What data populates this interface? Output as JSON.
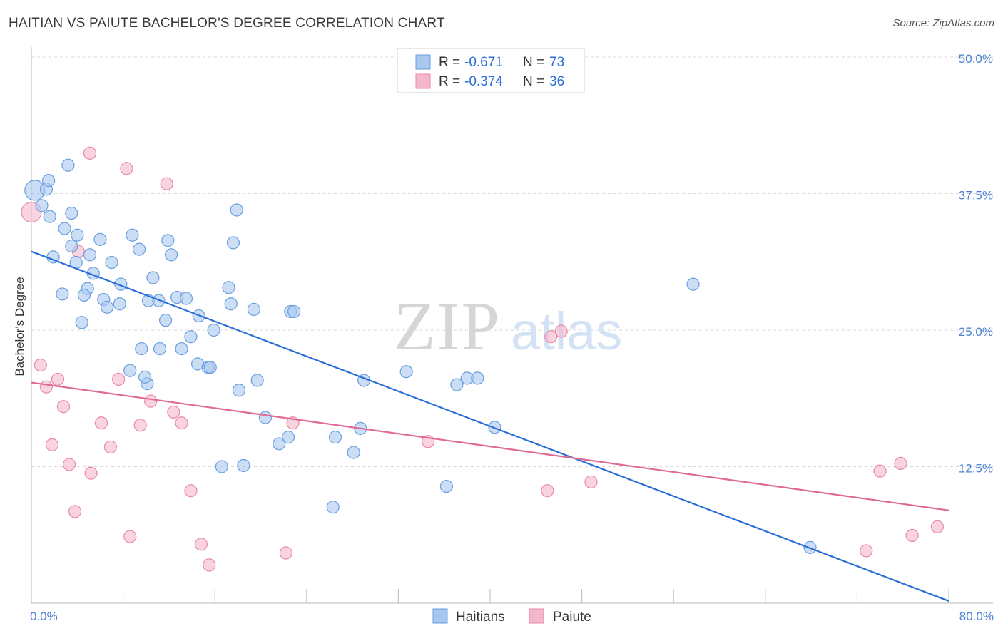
{
  "title": "HAITIAN VS PAIUTE BACHELOR'S DEGREE CORRELATION CHART",
  "source": "Source: ZipAtlas.com",
  "watermark": {
    "zip": "ZIP",
    "atlas": "atlas"
  },
  "colors": {
    "blue_fill": "#a8c8f0",
    "blue_stroke": "#6a9ee0",
    "blue_line": "#2a6fd6",
    "pink_fill": "#f5b8cb",
    "pink_stroke": "#e88aa8",
    "pink_line": "#e06a96",
    "tick_text": "#4a7fd4",
    "grid": "#d8d8d8"
  },
  "legend": {
    "rows": [
      {
        "r_label": "R =",
        "r_value": "-0.671",
        "n_label": "N =",
        "n_value": "73",
        "swatch": "blue"
      },
      {
        "r_label": "R =",
        "r_value": "-0.374",
        "n_label": "N =",
        "n_value": "36",
        "swatch": "pink"
      }
    ]
  },
  "bottom_legend": {
    "series1": "Haitians",
    "series2": "Paiute"
  },
  "chart_data": {
    "type": "scatter",
    "title": "HAITIAN VS PAIUTE BACHELOR'S DEGREE CORRELATION CHART",
    "xlabel": "",
    "ylabel": "Bachelor's Degree",
    "xlim": [
      0,
      80
    ],
    "ylim": [
      0,
      50
    ],
    "x_tick_labels": [
      "0.0%",
      "80.0%"
    ],
    "y_ticks": [
      12.5,
      25.0,
      37.5,
      50.0
    ],
    "y_tick_labels": [
      "12.5%",
      "25.0%",
      "37.5%",
      "50.0%"
    ],
    "grid": true,
    "legend_position": "top-center",
    "series": [
      {
        "name": "Haitians",
        "color": "#a8c8f0",
        "trend": {
          "x": [
            0,
            80
          ],
          "y": [
            32.2,
            0.2
          ]
        },
        "points": [
          [
            0.3,
            37.8
          ],
          [
            0.9,
            36.4
          ],
          [
            1.3,
            37.9
          ],
          [
            1.5,
            38.7
          ],
          [
            1.6,
            35.4
          ],
          [
            3.2,
            40.1
          ],
          [
            3.5,
            35.7
          ],
          [
            2.9,
            34.3
          ],
          [
            4.0,
            33.7
          ],
          [
            3.5,
            32.7
          ],
          [
            1.9,
            31.7
          ],
          [
            3.9,
            31.2
          ],
          [
            5.1,
            31.9
          ],
          [
            6.0,
            33.3
          ],
          [
            7.0,
            31.2
          ],
          [
            5.4,
            30.2
          ],
          [
            4.9,
            28.8
          ],
          [
            2.7,
            28.3
          ],
          [
            4.6,
            28.2
          ],
          [
            6.3,
            27.8
          ],
          [
            7.8,
            29.2
          ],
          [
            8.8,
            33.7
          ],
          [
            9.4,
            32.4
          ],
          [
            10.6,
            29.8
          ],
          [
            11.9,
            33.2
          ],
          [
            12.2,
            31.9
          ],
          [
            12.7,
            28.0
          ],
          [
            10.2,
            27.7
          ],
          [
            11.1,
            27.7
          ],
          [
            13.5,
            27.9
          ],
          [
            7.7,
            27.4
          ],
          [
            6.6,
            27.1
          ],
          [
            11.7,
            25.9
          ],
          [
            9.6,
            23.3
          ],
          [
            11.2,
            23.3
          ],
          [
            13.1,
            23.3
          ],
          [
            4.4,
            25.7
          ],
          [
            13.9,
            24.4
          ],
          [
            14.6,
            26.3
          ],
          [
            15.9,
            25.0
          ],
          [
            17.6,
            33.0
          ],
          [
            17.2,
            28.9
          ],
          [
            17.4,
            27.4
          ],
          [
            17.9,
            36.0
          ],
          [
            19.4,
            26.9
          ],
          [
            22.6,
            26.7
          ],
          [
            22.9,
            26.7
          ],
          [
            8.6,
            21.3
          ],
          [
            10.1,
            20.1
          ],
          [
            9.9,
            20.7
          ],
          [
            14.5,
            21.9
          ],
          [
            15.4,
            21.6
          ],
          [
            15.6,
            21.6
          ],
          [
            18.1,
            19.5
          ],
          [
            19.7,
            20.4
          ],
          [
            20.4,
            17.0
          ],
          [
            21.6,
            14.6
          ],
          [
            22.4,
            15.2
          ],
          [
            16.6,
            12.5
          ],
          [
            18.5,
            12.6
          ],
          [
            26.5,
            15.2
          ],
          [
            28.7,
            16.0
          ],
          [
            28.1,
            13.8
          ],
          [
            29.0,
            20.4
          ],
          [
            32.7,
            21.2
          ],
          [
            37.1,
            20.0
          ],
          [
            38.0,
            20.6
          ],
          [
            38.9,
            20.6
          ],
          [
            40.4,
            16.1
          ],
          [
            36.2,
            10.7
          ],
          [
            26.3,
            8.8
          ],
          [
            57.7,
            29.2
          ],
          [
            67.9,
            5.1
          ]
        ]
      },
      {
        "name": "Paiute",
        "color": "#f5b8cb",
        "trend": {
          "x": [
            0,
            80
          ],
          "y": [
            20.2,
            8.5
          ]
        },
        "points": [
          [
            0.0,
            35.8
          ],
          [
            5.1,
            41.2
          ],
          [
            8.3,
            39.8
          ],
          [
            11.8,
            38.4
          ],
          [
            4.1,
            32.2
          ],
          [
            0.8,
            21.8
          ],
          [
            1.3,
            19.8
          ],
          [
            2.3,
            20.5
          ],
          [
            2.8,
            18.0
          ],
          [
            1.8,
            14.5
          ],
          [
            3.3,
            12.7
          ],
          [
            3.8,
            8.4
          ],
          [
            5.2,
            11.9
          ],
          [
            6.1,
            16.5
          ],
          [
            6.9,
            14.3
          ],
          [
            7.6,
            20.5
          ],
          [
            9.5,
            16.3
          ],
          [
            10.4,
            18.5
          ],
          [
            12.4,
            17.5
          ],
          [
            13.1,
            16.5
          ],
          [
            13.9,
            10.3
          ],
          [
            8.6,
            6.1
          ],
          [
            14.8,
            5.4
          ],
          [
            15.5,
            3.5
          ],
          [
            22.2,
            4.6
          ],
          [
            22.8,
            16.5
          ],
          [
            34.6,
            14.8
          ],
          [
            45.3,
            24.4
          ],
          [
            46.2,
            24.9
          ],
          [
            45.0,
            10.3
          ],
          [
            48.8,
            11.1
          ],
          [
            74.0,
            12.1
          ],
          [
            75.8,
            12.8
          ],
          [
            72.8,
            4.8
          ],
          [
            76.8,
            6.2
          ],
          [
            79.0,
            7.0
          ]
        ]
      }
    ]
  }
}
